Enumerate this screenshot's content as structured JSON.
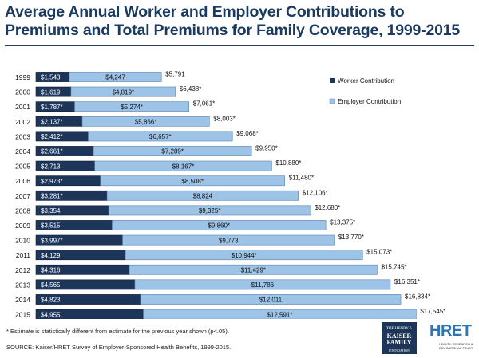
{
  "title": "Average Annual Worker and Employer Contributions to Premiums and Total Premiums for Family Coverage, 1999-2015",
  "footnote": "* Estimate is statistically different from estimate for the previous year shown (p<.05).",
  "source": "SOURCE:  Kaiser/HRET Survey of Employer-Sponsored Health Benefits, 1999-2015.",
  "logos": {
    "kff": [
      "THE HENRY J.",
      "KAISER",
      "FAMILY",
      "FOUNDATION"
    ],
    "hret_word": "HRET",
    "hret_sub": [
      "HEALTH RESEARCH &",
      "EDUCATIONAL TRUST"
    ]
  },
  "colors": {
    "worker": "#1d3559",
    "employer": "#9dc3e6",
    "title": "#1a3a5f"
  },
  "chart_data": {
    "type": "bar",
    "orientation": "horizontal",
    "stacked": true,
    "categories": [
      "1999",
      "2000",
      "2001",
      "2002",
      "2003",
      "2004",
      "2005",
      "2006",
      "2007",
      "2008",
      "2009",
      "2010",
      "2011",
      "2012",
      "2013",
      "2014",
      "2015"
    ],
    "series": [
      {
        "name": "Worker Contribution",
        "values": [
          1543,
          1619,
          1787,
          2137,
          2412,
          2661,
          2713,
          2973,
          3281,
          3354,
          3515,
          3997,
          4129,
          4316,
          4565,
          4823,
          4955
        ],
        "labels": [
          "$1,543",
          "$1,619",
          "$1,787*",
          "$2,137*",
          "$2,412*",
          "$2,661*",
          "$2,713",
          "$2,973*",
          "$3,281*",
          "$3,354",
          "$3,515",
          "$3,997*",
          "$4,129",
          "$4,316",
          "$4,565",
          "$4,823",
          "$4,955"
        ]
      },
      {
        "name": "Employer Contribution",
        "values": [
          4247,
          4819,
          5274,
          5866,
          6657,
          7289,
          8167,
          8508,
          8824,
          9325,
          9860,
          9773,
          10944,
          11429,
          11786,
          12011,
          12591
        ],
        "labels": [
          "$4,247",
          "$4,819*",
          "$5,274*",
          "$5,866*",
          "$6,657*",
          "$7,289*",
          "$8,167*",
          "$8,508*",
          "$8,824",
          "$9,325*",
          "$9,860*",
          "$9,773",
          "$10,944*",
          "$11,429*",
          "$11,786",
          "$12,011",
          "$12,591*"
        ]
      }
    ],
    "totals": {
      "values": [
        5791,
        6438,
        7061,
        8003,
        9068,
        9950,
        10880,
        11480,
        12106,
        12680,
        13375,
        13770,
        15073,
        15745,
        16351,
        16834,
        17545
      ],
      "labels": [
        "$5,791",
        "$6,438*",
        "$7,061*",
        "$8,003*",
        "$9,068*",
        "$9,950*",
        "$10,880*",
        "$11,480*",
        "$12,106*",
        "$12,680*",
        "$13,375*",
        "$13,770*",
        "$15,073*",
        "$15,745*",
        "$16,351*",
        "$16,834*",
        "$17,545*"
      ]
    },
    "legend_position": "top-right",
    "grid": false
  }
}
